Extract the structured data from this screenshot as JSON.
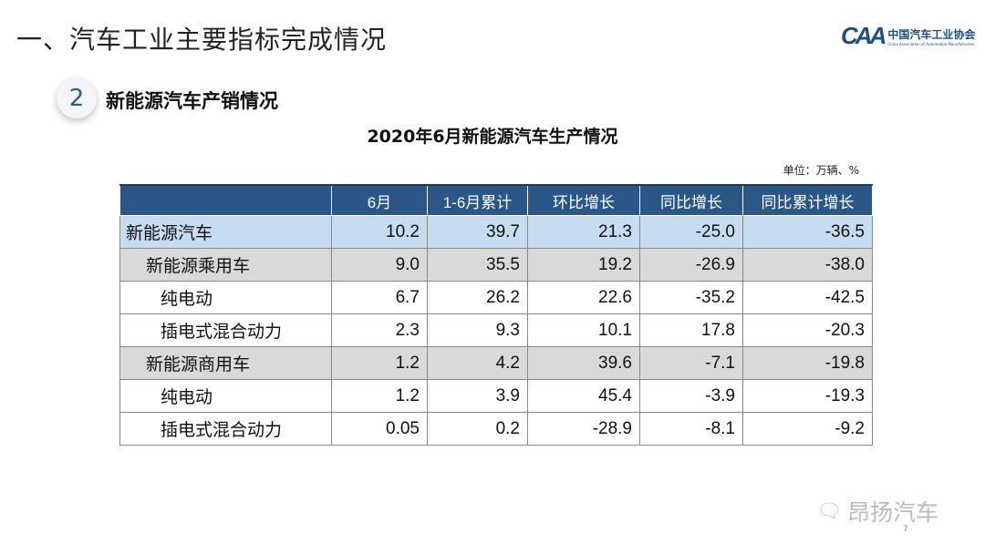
{
  "header": {
    "title": "一、汽车工业主要指标完成情况",
    "logo_cn": "中国汽车工业协会",
    "logo_en": "China Association of Automobile Manufacturers",
    "logo_mark": "CAA"
  },
  "section": {
    "number": "2",
    "title": "新能源汽车产销情况"
  },
  "table": {
    "title": "2020年6月新能源汽车生产情况",
    "unit": "单位：万辆、%",
    "columns": [
      "",
      "6月",
      "1-6月累计",
      "环比增长",
      "同比增长",
      "同比累计增长"
    ],
    "rows": [
      {
        "label": "新能源汽车",
        "values": [
          "10.2",
          "39.7",
          "21.3",
          "-25.0",
          "-36.5"
        ]
      },
      {
        "label": "新能源乘用车",
        "values": [
          "9.0",
          "35.5",
          "19.2",
          "-26.9",
          "-38.0"
        ]
      },
      {
        "label": "纯电动",
        "values": [
          "6.7",
          "26.2",
          "22.6",
          "-35.2",
          "-42.5"
        ]
      },
      {
        "label": "插电式混合动力",
        "values": [
          "2.3",
          "9.3",
          "10.1",
          "17.8",
          "-20.3"
        ]
      },
      {
        "label": "新能源商用车",
        "values": [
          "1.2",
          "4.2",
          "39.6",
          "-7.1",
          "-19.8"
        ]
      },
      {
        "label": "纯电动",
        "values": [
          "1.2",
          "3.9",
          "45.4",
          "-3.9",
          "-19.3"
        ]
      },
      {
        "label": "插电式混合动力",
        "values": [
          "0.05",
          "0.2",
          "-28.9",
          "-8.1",
          "-9.2"
        ]
      }
    ]
  },
  "watermark": {
    "text": "昂扬汽车",
    "icon": "wechat-icon"
  },
  "page_number": "7",
  "colors": {
    "header_bg": "#2a5785",
    "total_row": "#c6dcf0",
    "sub_row": "#d9d9d9"
  }
}
